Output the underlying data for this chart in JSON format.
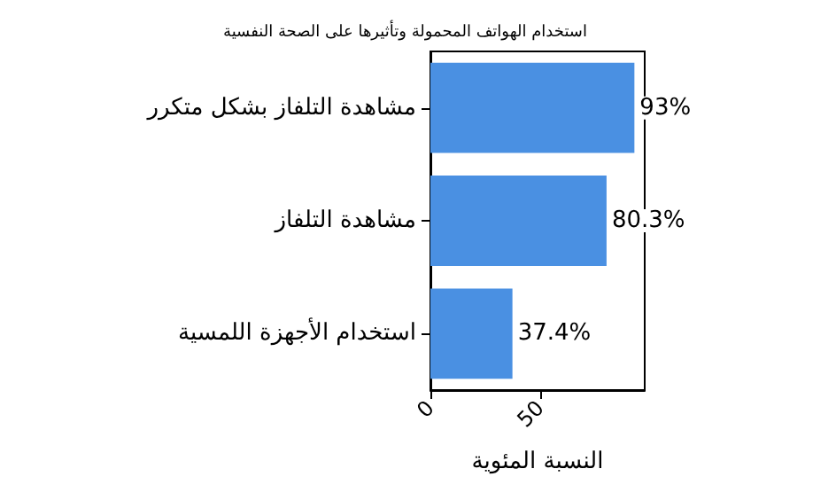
{
  "chart_data": {
    "type": "bar",
    "orientation": "horizontal",
    "title": "استخدام الهواتف المحمولة وتأثيرها على الصحة النفسية",
    "xlabel": "النسبة المئوية",
    "categories": [
      "مشاهدة التلفاز بشكل متكرر",
      "مشاهدة التلفاز",
      "استخدام الأجهزة اللمسية"
    ],
    "values": [
      93,
      80.3,
      37.4
    ],
    "color": "#4a90e2",
    "value_labels": [
      "93%",
      "80.3%",
      "37.4%"
    ],
    "xlim": [
      0,
      97.7
    ],
    "xticks": [
      0,
      50
    ],
    "grid": false
  }
}
